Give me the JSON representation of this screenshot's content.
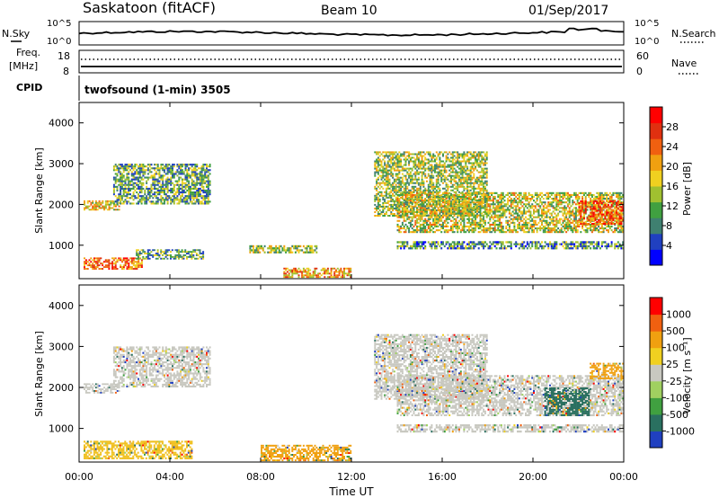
{
  "header": {
    "station": "Saskatoon (fitACF)",
    "beam": "Beam 10",
    "date": "01/Sep/2017"
  },
  "noise_panel": {
    "left_label": "N.Sky",
    "left_ticks": [
      "10^5",
      "10^0"
    ],
    "right_ticks": [
      "10^5",
      "10^0"
    ],
    "right_label": "N.Search",
    "right_legend_style": "dotted"
  },
  "freq_panel": {
    "left_label_1": "Freq.",
    "left_label_2": "[MHz]",
    "left_ticks": [
      "18",
      "8"
    ],
    "right_ticks": [
      "60",
      "0"
    ],
    "right_label": "Nave",
    "right_legend_style": "dotted"
  },
  "cpid": {
    "label": "CPID",
    "program": "twofsound (1-min) 3505"
  },
  "x_axis": {
    "title": "Time UT",
    "tick_labels": [
      "00:00",
      "04:00",
      "08:00",
      "12:00",
      "16:00",
      "20:00",
      "00:00"
    ],
    "range_hours": [
      0,
      24
    ]
  },
  "chart_data": [
    {
      "type": "heatmap",
      "quantity": "Power",
      "ylabel": "Slant Range [km]",
      "ylim": [
        180,
        4500
      ],
      "y_ticks": [
        "1000",
        "2000",
        "3000",
        "4000"
      ],
      "x_range_hours": [
        0,
        24
      ],
      "colorbar": {
        "label": "Power [dB]",
        "tick_labels": [
          "28",
          "24",
          "20",
          "16",
          "12",
          "8",
          "4"
        ],
        "range": [
          0,
          30
        ],
        "colors": [
          "#0000ff",
          "#2040c0",
          "#3f8070",
          "#40a040",
          "#a0c030",
          "#f0d020",
          "#f0a010",
          "#f06010",
          "#e03010",
          "#ff0000"
        ]
      },
      "echo_regions": [
        {
          "t0": 0.2,
          "t1": 2.8,
          "r0": 400,
          "r1": 700,
          "level": 0.75
        },
        {
          "t0": 0.2,
          "t1": 1.8,
          "r0": 1850,
          "r1": 2100,
          "level": 0.55
        },
        {
          "t0": 1.5,
          "t1": 5.8,
          "r0": 2000,
          "r1": 3000,
          "level": 0.35
        },
        {
          "t0": 2.5,
          "t1": 5.5,
          "r0": 650,
          "r1": 900,
          "level": 0.35
        },
        {
          "t0": 7.5,
          "t1": 10.5,
          "r0": 800,
          "r1": 1000,
          "level": 0.45
        },
        {
          "t0": 9.0,
          "t1": 12.0,
          "r0": 200,
          "r1": 450,
          "level": 0.65
        },
        {
          "t0": 13.0,
          "t1": 18.0,
          "r0": 1700,
          "r1": 3300,
          "level": 0.45
        },
        {
          "t0": 14.0,
          "t1": 24.0,
          "r0": 1300,
          "r1": 2300,
          "level": 0.5
        },
        {
          "t0": 14.0,
          "t1": 24.0,
          "r0": 900,
          "r1": 1100,
          "level": 0.3
        },
        {
          "t0": 22.0,
          "t1": 24.0,
          "r0": 1500,
          "r1": 2100,
          "level": 0.8
        }
      ]
    },
    {
      "type": "heatmap",
      "quantity": "Velocity",
      "ylabel": "Slant Range [km]",
      "ylim": [
        180,
        4500
      ],
      "y_ticks": [
        "1000",
        "2000",
        "3000",
        "4000"
      ],
      "x_range_hours": [
        0,
        24
      ],
      "colorbar": {
        "label": "Velocity [m s⁻¹]",
        "tick_labels": [
          "1000",
          "500",
          "100",
          "25",
          "-25",
          "-100",
          "-500",
          "-1000"
        ],
        "ground_scatter_color": "#c8c8c0",
        "colors": [
          "#2040c0",
          "#2a7060",
          "#40a040",
          "#a0d060",
          "#c8c8c0",
          "#f0d020",
          "#f0a010",
          "#f06010",
          "#ff0000"
        ]
      },
      "echo_regions": [
        {
          "t0": 0.2,
          "t1": 5.0,
          "r0": 250,
          "r1": 700,
          "color": "#f0c020"
        },
        {
          "t0": 0.2,
          "t1": 1.8,
          "r0": 1850,
          "r1": 2100,
          "color": "#c8c8c0"
        },
        {
          "t0": 1.5,
          "t1": 5.8,
          "r0": 2000,
          "r1": 3000,
          "color": "#c8c8c0"
        },
        {
          "t0": 8.0,
          "t1": 12.0,
          "r0": 200,
          "r1": 600,
          "color": "#f0a010"
        },
        {
          "t0": 13.0,
          "t1": 18.0,
          "r0": 1700,
          "r1": 3300,
          "color": "#c8c8c0"
        },
        {
          "t0": 14.0,
          "t1": 24.0,
          "r0": 1300,
          "r1": 2300,
          "color": "#c8c8c0"
        },
        {
          "t0": 14.0,
          "t1": 24.0,
          "r0": 900,
          "r1": 1100,
          "color": "#c8c8c0"
        },
        {
          "t0": 20.5,
          "t1": 22.5,
          "r0": 1300,
          "r1": 2000,
          "color": "#2a7060"
        },
        {
          "t0": 22.5,
          "t1": 24.0,
          "r0": 2200,
          "r1": 2600,
          "color": "#f0a010"
        }
      ]
    }
  ]
}
